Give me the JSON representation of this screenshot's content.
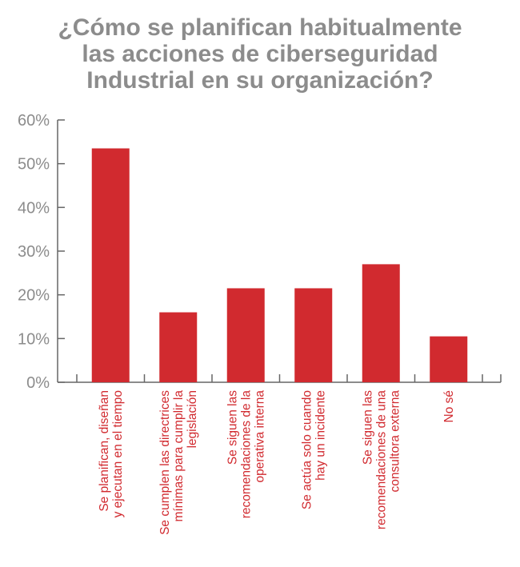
{
  "title_lines": [
    "¿Cómo se planifican habitualmente",
    "las acciones de ciberseguridad",
    "Industrial en su organización?"
  ],
  "colors": {
    "bar": "#d12a2f",
    "axis": "#666666",
    "title": "#8c8c8c",
    "tick_text": "#8c8c8c",
    "category_text": "#d12a2f"
  },
  "chart_data": {
    "type": "bar",
    "title": "¿Cómo se planifican habitualmente las acciones de ciberseguridad Industrial en su organización?",
    "categories": [
      [
        "Se planifican, diseñan",
        "y ejecutan en el tiempo"
      ],
      [
        "Se cumplen las directrices",
        "mínimas para cumplir la",
        "legislación"
      ],
      [
        "Se siguen las",
        "recomendaciones de la",
        "operativa interna"
      ],
      [
        "Se actúa solo cuando",
        "hay un incidente"
      ],
      [
        "Se siguen las",
        "recomendaciones de una",
        "consultora externa"
      ],
      [
        "No sé"
      ]
    ],
    "values": [
      53.5,
      16,
      21.5,
      21.5,
      27,
      10.5
    ],
    "ylim": [
      0,
      60
    ],
    "yticks": [
      "0%",
      "10%",
      "20%",
      "30%",
      "40%",
      "50%",
      "60%"
    ],
    "xlabel": "",
    "ylabel": "",
    "grid": false,
    "legend": "none"
  }
}
